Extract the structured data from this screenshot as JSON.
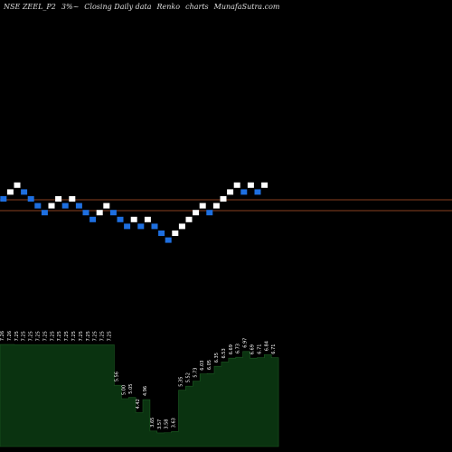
{
  "header": {
    "symbol": "NSE ZEEL_P2",
    "box": "3%~",
    "desc": "Closing Daily data",
    "type": "Renko",
    "charts": "charts",
    "site": "MunafaSutra.com"
  },
  "chart_data": {
    "type": "renko",
    "title": "NSE ZEEL_P2 3%~ Closing Daily data Renko charts MunafaSutra.com",
    "colors": {
      "up": "#ffffff",
      "down": "#1e6fe0",
      "volume": "#0a3310",
      "line": "#8a4020",
      "background": "#000000"
    },
    "reference_lines": [
      0,
      1
    ],
    "bricks": [
      "down",
      "up",
      "up",
      "down",
      "down",
      "down",
      "down",
      "up",
      "up",
      "down",
      "up",
      "down",
      "down",
      "down",
      "up",
      "up",
      "down",
      "down",
      "down",
      "up",
      "down",
      "up",
      "down",
      "down",
      "down",
      "up",
      "up",
      "up",
      "up",
      "up",
      "down",
      "up",
      "up",
      "up",
      "up",
      "down",
      "up",
      "down",
      "up"
    ],
    "volume_labels": [
      "7.26",
      "7.26",
      "7.25",
      "7.25",
      "7.25",
      "7.25",
      "7.25",
      "7.25",
      "7.25",
      "7.25",
      "7.25",
      "7.25",
      "7.25",
      "7.25",
      "7.25",
      "7.25",
      "5.56",
      "5.00",
      "5.05",
      "4.42",
      "4.96",
      "3.65",
      "3.57",
      "3.58",
      "3.63",
      "5.35",
      "5.52",
      "5.73",
      "6.03",
      "6.05",
      "6.35",
      "6.53",
      "6.69",
      "6.73",
      "6.97",
      "6.69",
      "6.71",
      "6.84",
      "6.71"
    ]
  }
}
